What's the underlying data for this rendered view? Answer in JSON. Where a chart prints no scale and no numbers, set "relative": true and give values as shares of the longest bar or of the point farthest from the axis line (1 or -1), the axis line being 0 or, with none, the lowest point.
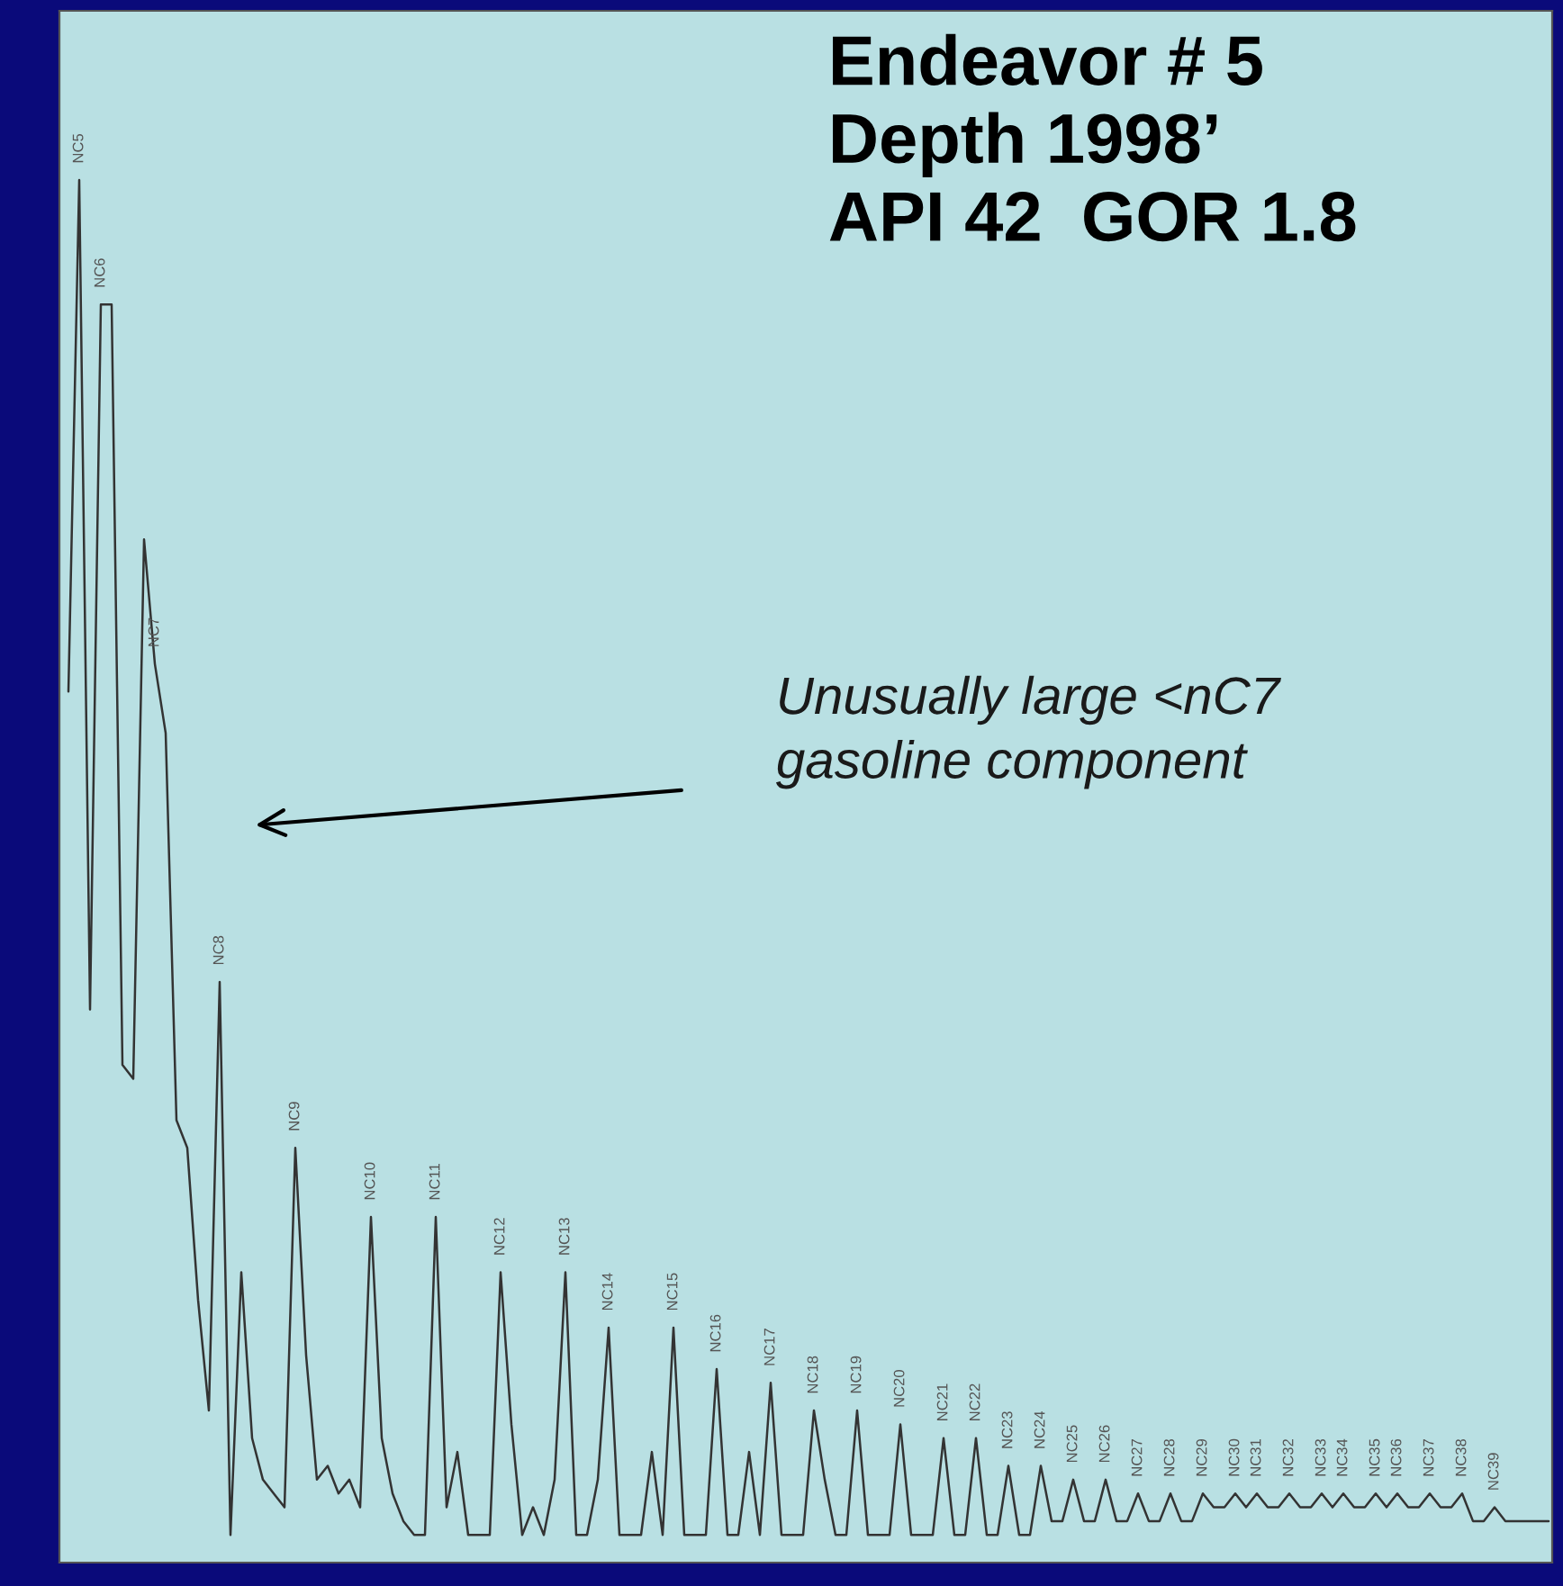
{
  "chart_data": {
    "type": "line",
    "relative": true,
    "color": "#333333",
    "title": "Endeavor # 5\nDepth 1998’\nAPI 42  GOR 1.8",
    "annotations": [
      "Unusually large <nC7\ngasoline component"
    ],
    "categories": [
      null,
      "NC5",
      null,
      "NC6",
      null,
      null,
      null,
      null,
      "NC7",
      null,
      null,
      null,
      null,
      null,
      "NC8",
      null,
      null,
      null,
      null,
      null,
      null,
      "NC9",
      null,
      null,
      null,
      null,
      null,
      null,
      "NC10",
      null,
      null,
      null,
      null,
      null,
      "NC11",
      null,
      null,
      null,
      null,
      null,
      "NC12",
      null,
      null,
      null,
      null,
      null,
      "NC13",
      null,
      null,
      null,
      "NC14",
      null,
      null,
      null,
      null,
      null,
      "NC15",
      null,
      null,
      null,
      "NC16",
      null,
      null,
      null,
      null,
      "NC17",
      null,
      null,
      null,
      "NC18",
      null,
      null,
      null,
      "NC19",
      null,
      null,
      null,
      "NC20",
      null,
      null,
      null,
      "NC21",
      null,
      null,
      "NC22",
      null,
      null,
      "NC23",
      null,
      null,
      "NC24",
      null,
      null,
      "NC25",
      null,
      null,
      "NC26",
      null,
      null,
      "NC27",
      null,
      null,
      "NC28",
      null,
      null,
      "NC29",
      null,
      null,
      "NC30",
      null,
      "NC31",
      null,
      null,
      "NC32",
      null,
      null,
      "NC33",
      null,
      "NC34",
      null,
      null,
      "NC35",
      null,
      "NC36",
      null,
      null,
      "NC37",
      null,
      null,
      "NC38",
      null,
      null,
      "NC39",
      null,
      null,
      null,
      null,
      null
    ],
    "values": [
      0.63,
      1.0,
      0.4,
      0.91,
      0.91,
      0.36,
      0.35,
      0.74,
      0.65,
      0.6,
      0.32,
      0.3,
      0.19,
      0.11,
      0.42,
      0.02,
      0.21,
      0.09,
      0.06,
      0.05,
      0.04,
      0.3,
      0.15,
      0.06,
      0.07,
      0.05,
      0.06,
      0.04,
      0.25,
      0.09,
      0.05,
      0.03,
      0.02,
      0.02,
      0.25,
      0.04,
      0.08,
      0.02,
      0.02,
      0.02,
      0.21,
      0.1,
      0.02,
      0.04,
      0.02,
      0.06,
      0.21,
      0.02,
      0.02,
      0.06,
      0.17,
      0.02,
      0.02,
      0.02,
      0.08,
      0.02,
      0.17,
      0.02,
      0.02,
      0.02,
      0.14,
      0.02,
      0.02,
      0.08,
      0.02,
      0.13,
      0.02,
      0.02,
      0.02,
      0.11,
      0.06,
      0.02,
      0.02,
      0.11,
      0.02,
      0.02,
      0.02,
      0.1,
      0.02,
      0.02,
      0.02,
      0.09,
      0.02,
      0.02,
      0.09,
      0.02,
      0.02,
      0.07,
      0.02,
      0.02,
      0.07,
      0.03,
      0.03,
      0.06,
      0.03,
      0.03,
      0.06,
      0.03,
      0.03,
      0.05,
      0.03,
      0.03,
      0.05,
      0.03,
      0.03,
      0.05,
      0.04,
      0.04,
      0.05,
      0.04,
      0.05,
      0.04,
      0.04,
      0.05,
      0.04,
      0.04,
      0.05,
      0.04,
      0.05,
      0.04,
      0.04,
      0.05,
      0.04,
      0.05,
      0.04,
      0.04,
      0.05,
      0.04,
      0.04,
      0.05,
      0.03,
      0.03,
      0.04,
      0.03,
      0.03,
      0.03,
      0.03,
      0.03
    ]
  }
}
